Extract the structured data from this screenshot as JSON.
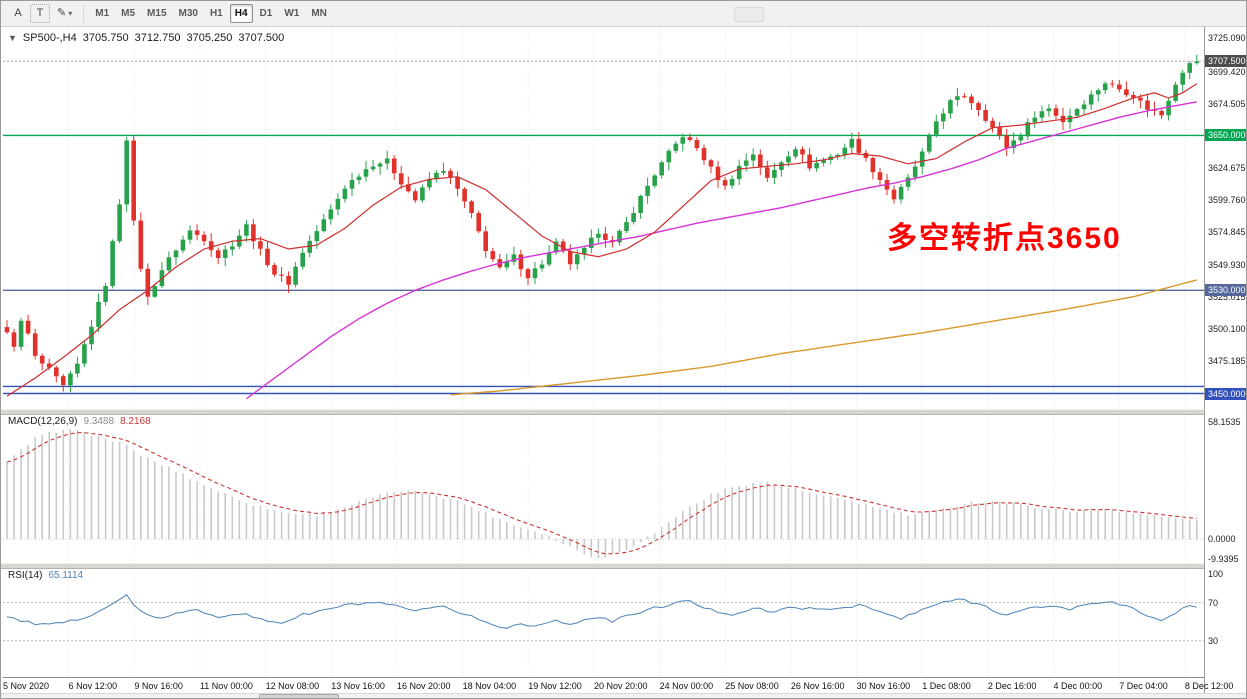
{
  "toolbar": {
    "cursor_button": "A",
    "text_button": "T",
    "draw_icon": "✎",
    "caret_icon": "▾",
    "timeframes": [
      "M1",
      "M5",
      "M15",
      "M30",
      "H1",
      "H4",
      "D1",
      "W1",
      "MN"
    ],
    "active_timeframe": "H4"
  },
  "symbol_header": {
    "collapse_icon": "▼",
    "title": "SP500-,H4",
    "open": "3705.750",
    "high": "3712.750",
    "low": "3705.250",
    "close": "3707.500"
  },
  "indicators": {
    "macd": {
      "label": "MACD(12,26,9)",
      "value_main": "9.3488",
      "value_signal": "8.2168"
    },
    "rsi": {
      "label": "RSI(14)",
      "value": "65.1114"
    }
  },
  "annotation": {
    "text": "多空转折点3650",
    "color": "#ff0000"
  },
  "colors": {
    "up": "#27a24b",
    "down": "#e1312b",
    "ma_fast": "#cf2d2d",
    "ma_mid": "#d633d6",
    "ma_slow": "#d89a2b",
    "macd_hist": "#c9c9c9",
    "macd_signal": "#cc3434",
    "rsi_line": "#4d82b8",
    "grid": "#e4e4e4",
    "hline_green": "#00a550",
    "hline_slate": "#55679c",
    "hline_blue": "#3351bb",
    "current_tag_bg": "#4d4d4d"
  },
  "chart_data": {
    "type": "candlestick",
    "symbol": "SP500-",
    "timeframe": "H4",
    "current_ohlc": {
      "open": 3705.75,
      "high": 3712.75,
      "low": 3705.25,
      "close": 3707.5
    },
    "n_bars": 170,
    "price_axis": {
      "max": 3734,
      "min": 3438,
      "ticks": [
        {
          "text": "3725.090",
          "value": 3725.09
        },
        {
          "text": "3699.420",
          "value": 3699.42
        },
        {
          "text": "3674.505",
          "value": 3674.505
        },
        {
          "text": "3624.675",
          "value": 3624.675
        },
        {
          "text": "3599.760",
          "value": 3599.76
        },
        {
          "text": "3574.845",
          "value": 3574.845
        },
        {
          "text": "3549.930",
          "value": 3549.93
        },
        {
          "text": "3525.015",
          "value": 3525.015
        },
        {
          "text": "3500.100",
          "value": 3500.1
        },
        {
          "text": "3475.185",
          "value": 3475.185
        }
      ]
    },
    "x_labels": [
      "5 Nov 2020",
      "6 Nov 12:00",
      "9 Nov 16:00",
      "11 Nov 00:00",
      "12 Nov 08:00",
      "13 Nov 16:00",
      "16 Nov 20:00",
      "18 Nov 04:00",
      "19 Nov 12:00",
      "20 Nov 20:00",
      "24 Nov 00:00",
      "25 Nov 08:00",
      "26 Nov 16:00",
      "30 Nov 16:00",
      "1 Dec 08:00",
      "2 Dec 16:00",
      "4 Dec 00:00",
      "7 Dec 04:00",
      "8 Dec 12:00"
    ],
    "hlines": [
      {
        "value": 3650,
        "label": "3650.000",
        "color": "#00a550"
      },
      {
        "value": 3530,
        "label": "3530.000",
        "color": "#55679c"
      },
      {
        "value": 3455.5,
        "color": "#3351bb"
      },
      {
        "value": 3450,
        "label": "3450.000",
        "color": "#3351bb"
      }
    ],
    "current_price": {
      "value": 3707.5,
      "label": "3707.500",
      "tag_bg": "#4d4d4d"
    },
    "series": {
      "close_anchors": [
        [
          0,
          3496
        ],
        [
          1,
          3488
        ],
        [
          2,
          3505
        ],
        [
          3,
          3496
        ],
        [
          4,
          3478
        ],
        [
          6,
          3468
        ],
        [
          8,
          3455
        ],
        [
          10,
          3472
        ],
        [
          12,
          3503
        ],
        [
          14,
          3535
        ],
        [
          16,
          3598
        ],
        [
          17,
          3648
        ],
        [
          18,
          3582
        ],
        [
          19,
          3548
        ],
        [
          20,
          3524
        ],
        [
          22,
          3546
        ],
        [
          24,
          3562
        ],
        [
          26,
          3576
        ],
        [
          28,
          3570
        ],
        [
          30,
          3556
        ],
        [
          32,
          3566
        ],
        [
          34,
          3580
        ],
        [
          36,
          3560
        ],
        [
          38,
          3543
        ],
        [
          40,
          3536
        ],
        [
          42,
          3560
        ],
        [
          44,
          3576
        ],
        [
          46,
          3592
        ],
        [
          48,
          3610
        ],
        [
          50,
          3620
        ],
        [
          52,
          3628
        ],
        [
          54,
          3630
        ],
        [
          56,
          3614
        ],
        [
          58,
          3600
        ],
        [
          60,
          3616
        ],
        [
          62,
          3624
        ],
        [
          64,
          3608
        ],
        [
          66,
          3588
        ],
        [
          68,
          3562
        ],
        [
          70,
          3546
        ],
        [
          72,
          3556
        ],
        [
          74,
          3541
        ],
        [
          76,
          3551
        ],
        [
          78,
          3566
        ],
        [
          80,
          3551
        ],
        [
          82,
          3561
        ],
        [
          84,
          3576
        ],
        [
          86,
          3566
        ],
        [
          88,
          3582
        ],
        [
          90,
          3602
        ],
        [
          92,
          3620
        ],
        [
          94,
          3636
        ],
        [
          96,
          3650
        ],
        [
          98,
          3640
        ],
        [
          100,
          3624
        ],
        [
          102,
          3610
        ],
        [
          104,
          3626
        ],
        [
          106,
          3636
        ],
        [
          108,
          3616
        ],
        [
          110,
          3630
        ],
        [
          112,
          3641
        ],
        [
          114,
          3626
        ],
        [
          116,
          3631
        ],
        [
          118,
          3636
        ],
        [
          120,
          3646
        ],
        [
          122,
          3631
        ],
        [
          124,
          3616
        ],
        [
          126,
          3601
        ],
        [
          128,
          3616
        ],
        [
          130,
          3636
        ],
        [
          132,
          3661
        ],
        [
          134,
          3676
        ],
        [
          136,
          3681
        ],
        [
          138,
          3671
        ],
        [
          140,
          3656
        ],
        [
          142,
          3641
        ],
        [
          144,
          3651
        ],
        [
          146,
          3666
        ],
        [
          148,
          3671
        ],
        [
          150,
          3661
        ],
        [
          152,
          3671
        ],
        [
          154,
          3681
        ],
        [
          156,
          3691
        ],
        [
          158,
          3686
        ],
        [
          160,
          3681
        ],
        [
          162,
          3671
        ],
        [
          164,
          3666
        ],
        [
          166,
          3691
        ],
        [
          168,
          3706
        ],
        [
          169,
          3707.5
        ]
      ],
      "ma_fast_anchors": [
        [
          0,
          3448
        ],
        [
          4,
          3462
        ],
        [
          8,
          3478
        ],
        [
          12,
          3495
        ],
        [
          16,
          3515
        ],
        [
          20,
          3530
        ],
        [
          24,
          3548
        ],
        [
          28,
          3562
        ],
        [
          32,
          3568
        ],
        [
          36,
          3570
        ],
        [
          40,
          3562
        ],
        [
          44,
          3565
        ],
        [
          48,
          3578
        ],
        [
          52,
          3596
        ],
        [
          56,
          3610
        ],
        [
          60,
          3616
        ],
        [
          64,
          3618
        ],
        [
          68,
          3608
        ],
        [
          72,
          3590
        ],
        [
          76,
          3572
        ],
        [
          80,
          3560
        ],
        [
          84,
          3556
        ],
        [
          88,
          3562
        ],
        [
          92,
          3575
        ],
        [
          96,
          3595
        ],
        [
          100,
          3615
        ],
        [
          104,
          3624
        ],
        [
          108,
          3626
        ],
        [
          112,
          3628
        ],
        [
          116,
          3631
        ],
        [
          120,
          3636
        ],
        [
          124,
          3634
        ],
        [
          128,
          3628
        ],
        [
          132,
          3632
        ],
        [
          136,
          3645
        ],
        [
          140,
          3656
        ],
        [
          144,
          3658
        ],
        [
          148,
          3661
        ],
        [
          152,
          3664
        ],
        [
          156,
          3671
        ],
        [
          160,
          3679
        ],
        [
          163,
          3683
        ],
        [
          165,
          3679
        ],
        [
          167,
          3683
        ],
        [
          169,
          3690
        ]
      ],
      "ma_mid_anchors": [
        [
          34,
          3446
        ],
        [
          38,
          3462
        ],
        [
          42,
          3478
        ],
        [
          46,
          3494
        ],
        [
          50,
          3508
        ],
        [
          54,
          3520
        ],
        [
          58,
          3530
        ],
        [
          62,
          3538
        ],
        [
          66,
          3545
        ],
        [
          70,
          3551
        ],
        [
          74,
          3556
        ],
        [
          78,
          3560
        ],
        [
          82,
          3564
        ],
        [
          86,
          3568
        ],
        [
          90,
          3572
        ],
        [
          94,
          3577
        ],
        [
          98,
          3582
        ],
        [
          102,
          3586
        ],
        [
          106,
          3590
        ],
        [
          110,
          3594
        ],
        [
          114,
          3599
        ],
        [
          118,
          3604
        ],
        [
          122,
          3609
        ],
        [
          126,
          3613
        ],
        [
          130,
          3618
        ],
        [
          134,
          3624
        ],
        [
          138,
          3631
        ],
        [
          142,
          3640
        ],
        [
          146,
          3646
        ],
        [
          150,
          3652
        ],
        [
          154,
          3658
        ],
        [
          158,
          3664
        ],
        [
          162,
          3669
        ],
        [
          166,
          3673
        ],
        [
          169,
          3676
        ]
      ],
      "ma_slow_anchors": [
        [
          63,
          3449
        ],
        [
          70,
          3452
        ],
        [
          80,
          3458
        ],
        [
          90,
          3464
        ],
        [
          100,
          3471
        ],
        [
          110,
          3481
        ],
        [
          120,
          3489
        ],
        [
          130,
          3497
        ],
        [
          140,
          3506
        ],
        [
          150,
          3515
        ],
        [
          160,
          3525
        ],
        [
          169,
          3538
        ]
      ]
    },
    "macd": {
      "range": {
        "max": 62.7,
        "min": -11.9
      },
      "current_main": 9.3488,
      "current_signal": 8.2168,
      "axis_labels": [
        {
          "text": "58.1535",
          "value": 58.1535
        },
        {
          "text": "0.0000",
          "value": 0
        },
        {
          "text": "-9.9395",
          "value": -9.9395
        }
      ],
      "anchors": [
        [
          0,
          38
        ],
        [
          4,
          50
        ],
        [
          8,
          55
        ],
        [
          12,
          52
        ],
        [
          16,
          48
        ],
        [
          20,
          40
        ],
        [
          24,
          34
        ],
        [
          28,
          27
        ],
        [
          32,
          21
        ],
        [
          36,
          16
        ],
        [
          40,
          13
        ],
        [
          44,
          12
        ],
        [
          48,
          16
        ],
        [
          52,
          21
        ],
        [
          56,
          24
        ],
        [
          60,
          23
        ],
        [
          64,
          19
        ],
        [
          68,
          13
        ],
        [
          72,
          7
        ],
        [
          76,
          3
        ],
        [
          80,
          -4
        ],
        [
          84,
          -9.9
        ],
        [
          88,
          -5
        ],
        [
          92,
          3
        ],
        [
          96,
          14
        ],
        [
          100,
          22
        ],
        [
          104,
          27
        ],
        [
          108,
          28
        ],
        [
          112,
          25
        ],
        [
          116,
          21
        ],
        [
          120,
          19
        ],
        [
          124,
          15
        ],
        [
          128,
          12
        ],
        [
          132,
          14
        ],
        [
          136,
          18
        ],
        [
          140,
          19
        ],
        [
          144,
          17
        ],
        [
          148,
          15
        ],
        [
          152,
          14
        ],
        [
          156,
          15
        ],
        [
          160,
          13
        ],
        [
          164,
          11
        ],
        [
          169,
          9.35
        ]
      ]
    },
    "rsi": {
      "range": {
        "max": 107.5,
        "min": -8.3
      },
      "current": 65.1114,
      "levels": [
        70,
        30
      ],
      "axis_labels": [
        {
          "text": "100",
          "value": 100
        },
        {
          "text": "70",
          "value": 70
        },
        {
          "text": "30",
          "value": 30
        }
      ],
      "anchors": [
        [
          0,
          55
        ],
        [
          3,
          49
        ],
        [
          6,
          46
        ],
        [
          9,
          50
        ],
        [
          12,
          58
        ],
        [
          15,
          68
        ],
        [
          17,
          78
        ],
        [
          19,
          60
        ],
        [
          21,
          53
        ],
        [
          24,
          58
        ],
        [
          27,
          62
        ],
        [
          30,
          56
        ],
        [
          33,
          59
        ],
        [
          36,
          52
        ],
        [
          39,
          49
        ],
        [
          42,
          57
        ],
        [
          45,
          62
        ],
        [
          48,
          67
        ],
        [
          52,
          70
        ],
        [
          55,
          66
        ],
        [
          58,
          61
        ],
        [
          62,
          65
        ],
        [
          66,
          56
        ],
        [
          69,
          46
        ],
        [
          71,
          43
        ],
        [
          73,
          49
        ],
        [
          75,
          45
        ],
        [
          77,
          51
        ],
        [
          80,
          48
        ],
        [
          83,
          54
        ],
        [
          86,
          51
        ],
        [
          89,
          58
        ],
        [
          92,
          64
        ],
        [
          95,
          70
        ],
        [
          97,
          71
        ],
        [
          100,
          62
        ],
        [
          103,
          58
        ],
        [
          106,
          64
        ],
        [
          109,
          60
        ],
        [
          112,
          66
        ],
        [
          115,
          62
        ],
        [
          118,
          64
        ],
        [
          121,
          68
        ],
        [
          124,
          60
        ],
        [
          127,
          53
        ],
        [
          130,
          62
        ],
        [
          133,
          71
        ],
        [
          136,
          73
        ],
        [
          139,
          66
        ],
        [
          142,
          57
        ],
        [
          145,
          63
        ],
        [
          148,
          67
        ],
        [
          151,
          63
        ],
        [
          154,
          69
        ],
        [
          157,
          72
        ],
        [
          160,
          63
        ],
        [
          162,
          55
        ],
        [
          164,
          50
        ],
        [
          166,
          60
        ],
        [
          168,
          67
        ],
        [
          169,
          65.11
        ]
      ]
    }
  }
}
